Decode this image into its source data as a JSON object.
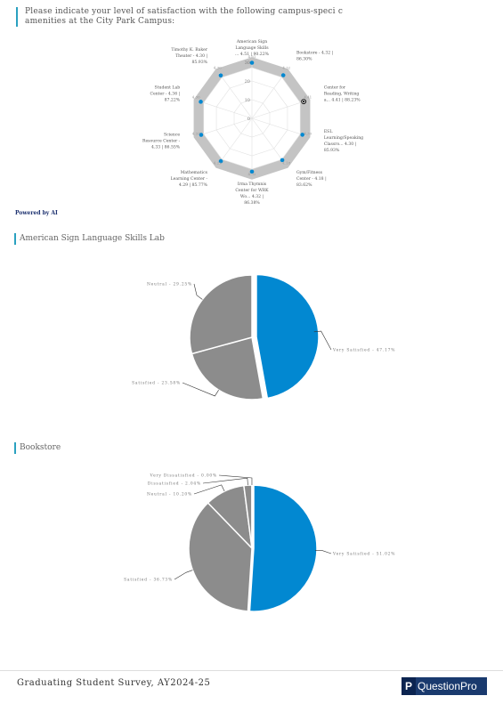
{
  "question": "Please indicate your level of satisfaction with the following campus-speci  c amenities at the City Park Campus:",
  "powered_by": "Powered by AI",
  "sections": [
    {
      "title": "American Sign Language Skills Lab"
    },
    {
      "title": "Bookstore"
    }
  ],
  "footer": {
    "survey": "Graduating Student Survey, AY2024-25",
    "brand": "QuestionPro"
  },
  "colors": {
    "accent": "#0288d1",
    "gray": "#8c8c8c",
    "band": "#c4c4c4",
    "rule": "#2aa1c0"
  },
  "chart_data": [
    {
      "type": "radar",
      "rticks": [
        "0",
        "10",
        "20",
        "30"
      ],
      "categories": [
        {
          "label": [
            "American Sign",
            "Language Skills",
            "... 4.51 | 90.22%"
          ],
          "value": 4.51,
          "tick": "4.51"
        },
        {
          "label": [
            "Bookstore - 4.32 |",
            "86.30%"
          ],
          "value": 4.32,
          "tick": "4.32"
        },
        {
          "label": [
            "Center for",
            "Reading, Writing",
            "a... 4.41 | 88.23%"
          ],
          "value": 4.41,
          "tick": "4.41"
        },
        {
          "label": [
            "ESL",
            "Learning/Speaking",
            "Classro... 4.30 |",
            "85.93%"
          ],
          "value": 4.3,
          "tick": "4.30"
        },
        {
          "label": [
            "Gym/Fitness",
            "Center - 4.18 |",
            "83.62%"
          ],
          "value": 4.18,
          "tick": "4.18"
        },
        {
          "label": [
            "Irma Thymnis",
            "Center for WRK",
            "Wo... 4.32 |",
            "86.38%"
          ],
          "value": 4.32,
          "tick": "4.32"
        },
        {
          "label": [
            "Mathematics",
            "Learning Center -",
            "4.29 | 85.77%"
          ],
          "value": 4.29,
          "tick": "4.29"
        },
        {
          "label": [
            "Science",
            "Resource Center -",
            "4.33 | 86.55%"
          ],
          "value": 4.33,
          "tick": "4.33"
        },
        {
          "label": [
            "Student Lab",
            "Center - 4.36 |",
            "87.22%"
          ],
          "value": 4.36,
          "tick": "4.36"
        },
        {
          "label": [
            "Timothy K. Baker",
            "Theater - 4.30 |",
            "85.93%"
          ],
          "value": 4.3,
          "tick": "4.30"
        }
      ]
    },
    {
      "type": "pie",
      "slices": [
        {
          "label": "Very Satisfied - 47.17%",
          "value": 47.17,
          "color": "#0288d1"
        },
        {
          "label": "Satisfied - 23.58%",
          "value": 23.58,
          "color": "#8c8c8c"
        },
        {
          "label": "Neutral - 29.25%",
          "value": 29.25,
          "color": "#8c8c8c"
        }
      ]
    },
    {
      "type": "pie",
      "slices": [
        {
          "label": "Very Satisfied - 51.02%",
          "value": 51.02,
          "color": "#0288d1"
        },
        {
          "label": "Satisfied - 36.73%",
          "value": 36.73,
          "color": "#8c8c8c"
        },
        {
          "label": "Neutral - 10.20%",
          "value": 10.2,
          "color": "#8c8c8c"
        },
        {
          "label": "Dissatisfied - 2.04%",
          "value": 2.04,
          "color": "#8c8c8c"
        },
        {
          "label": "Very Dissatisfied - 0.00%",
          "value": 0.01,
          "color": "#8c8c8c"
        }
      ]
    }
  ]
}
